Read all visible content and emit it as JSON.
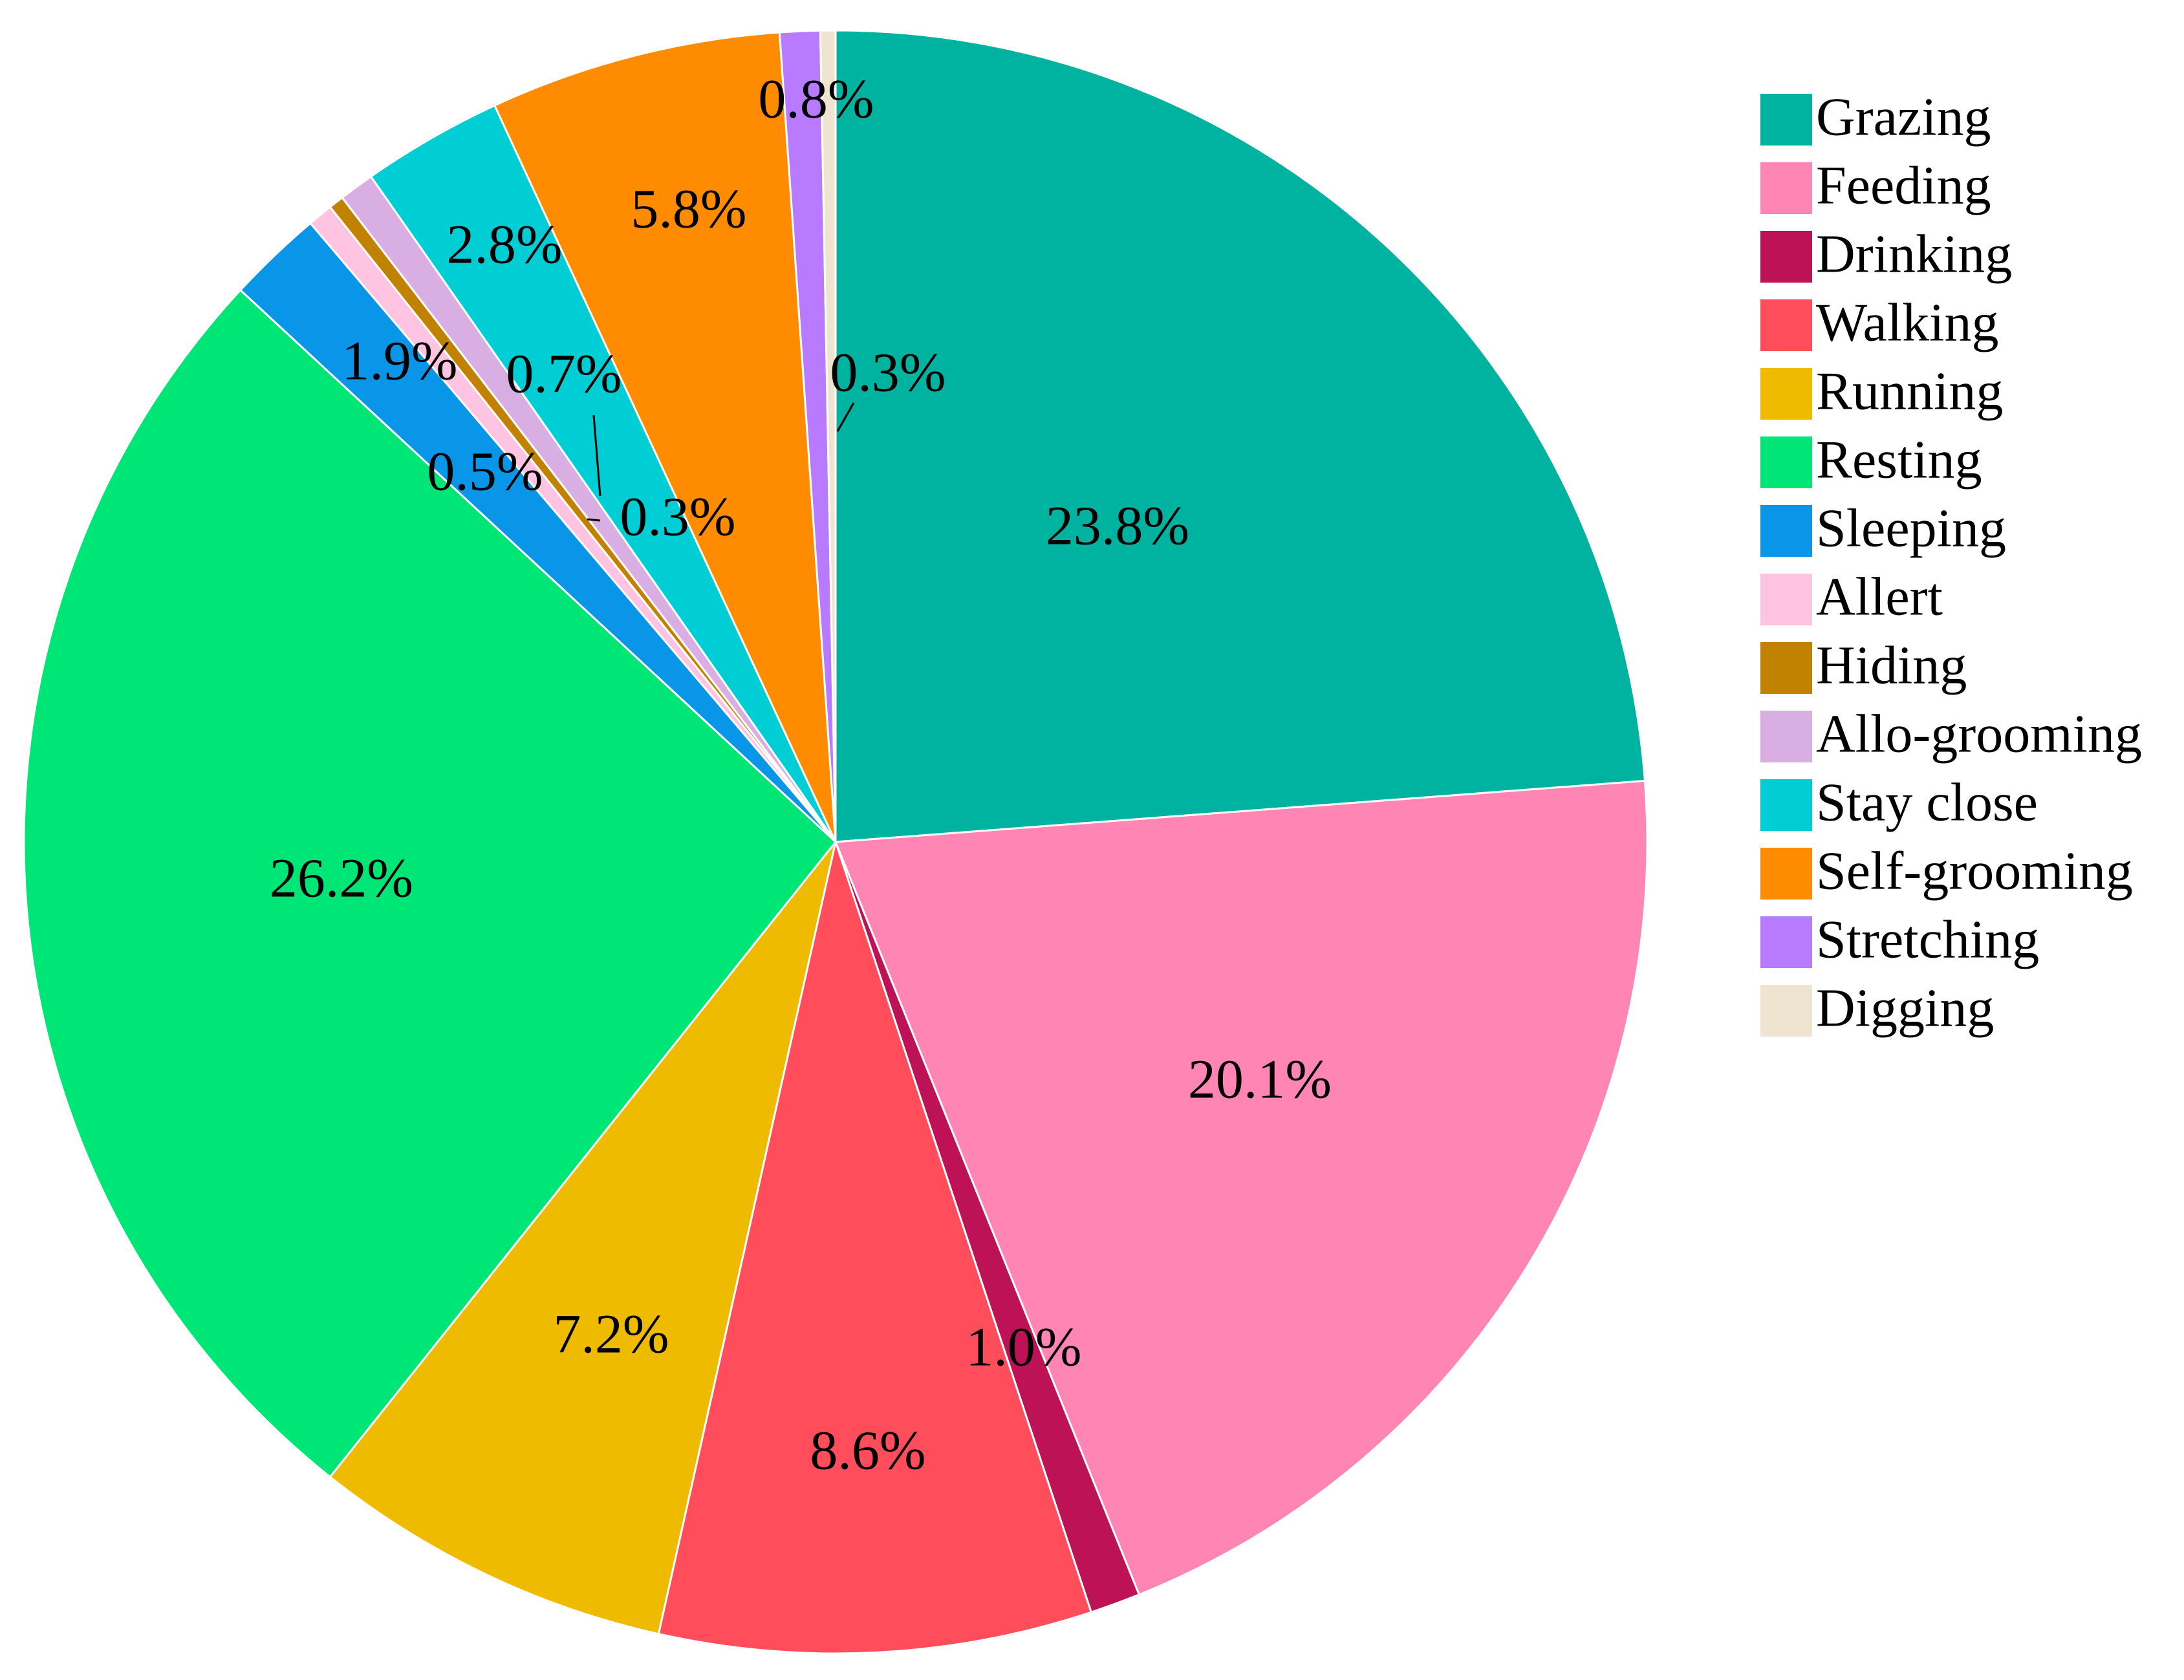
{
  "chart_data": {
    "type": "pie",
    "title": "",
    "legend_position": "right",
    "slices": [
      {
        "name": "Grazing",
        "value": 23.8,
        "label": "23.8%",
        "color": "#00B3A1"
      },
      {
        "name": "Feeding",
        "value": 20.1,
        "label": "20.1%",
        "color": "#FF85B5"
      },
      {
        "name": "Drinking",
        "value": 1.0,
        "label": "1.0%",
        "color": "#BE1256"
      },
      {
        "name": "Walking",
        "value": 8.6,
        "label": "8.6%",
        "color": "#FF4D5B"
      },
      {
        "name": "Running",
        "value": 7.2,
        "label": "7.2%",
        "color": "#EEBB00"
      },
      {
        "name": "Resting",
        "value": 26.2,
        "label": "26.2%",
        "color": "#00E676"
      },
      {
        "name": "Sleeping",
        "value": 1.9,
        "label": "1.9%",
        "color": "#0A96E8"
      },
      {
        "name": "Allert",
        "value": 0.5,
        "label": "0.5%",
        "color": "#FFC4E2"
      },
      {
        "name": "Hiding",
        "value": 0.3,
        "label": "0.3%",
        "color": "#C08200"
      },
      {
        "name": "Allo-grooming",
        "value": 0.7,
        "label": "0.7%",
        "color": "#D9AEE3"
      },
      {
        "name": "Stay close",
        "value": 2.8,
        "label": "2.8%",
        "color": "#00CED4"
      },
      {
        "name": "Self-grooming",
        "value": 5.8,
        "label": "5.8%",
        "color": "#FF8C00"
      },
      {
        "name": "Stretching",
        "value": 0.8,
        "label": "0.8%",
        "color": "#B87AFF"
      },
      {
        "name": "Digging",
        "value": 0.3,
        "label": "0.3%",
        "color": "#EEE4CF"
      }
    ]
  }
}
